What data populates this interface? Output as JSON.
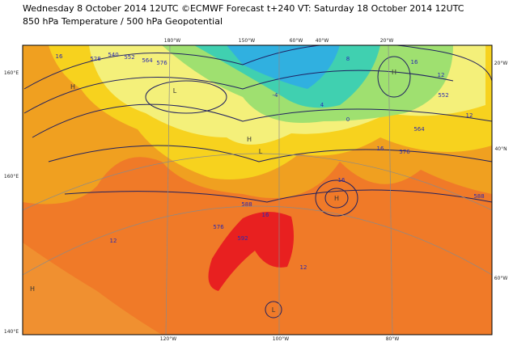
{
  "header": {
    "line1": "Wednesday 8 October 2014 12UTC ©ECMWF Forecast t+240 VT: Saturday 18 October 2014 12UTC",
    "line2": "850 hPa Temperature / 500 hPa Geopotential"
  },
  "map": {
    "graticule_labels": [
      "180°W",
      "150°W",
      "60°W",
      "40°W",
      "20°W",
      "160°E",
      "160°E",
      "140°E",
      "120°W",
      "100°W",
      "80°W",
      "20°W",
      "40°N",
      "60°W"
    ],
    "contour_labels": [
      "16",
      "528",
      "540",
      "552",
      "564",
      "576",
      "16",
      "12",
      "8",
      "4",
      "-4",
      "0",
      "552",
      "564",
      "576",
      "588",
      "12",
      "16",
      "12",
      "16",
      "576",
      "588",
      "16",
      "12",
      "592"
    ],
    "centers": [
      "H",
      "L",
      "H",
      "L",
      "L",
      "H",
      "H",
      "H"
    ]
  }
}
